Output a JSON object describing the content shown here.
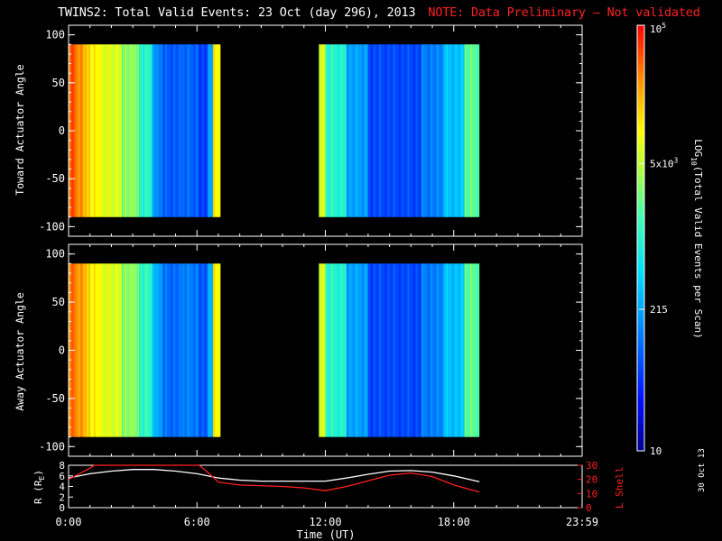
{
  "header": {
    "title": "TWINS2: Total Valid Events: 23 Oct (day 296), 2013",
    "note": "NOTE: Data Preliminary — Not validated"
  },
  "footer": {
    "date_stamp": "30 Oct 13"
  },
  "colors": {
    "note": "#ff2020",
    "r_line": "#ffffff",
    "l_line": "#ff2020",
    "gap": "#000000"
  },
  "chart_data": [
    {
      "type": "heatmap",
      "panel": "top",
      "ylabel": "Toward Actuator Angle",
      "ylim": [
        -110,
        110
      ],
      "yticks": [
        100,
        50,
        0,
        -50,
        -100
      ],
      "data_angle_range": [
        -90,
        90
      ],
      "xlim_hours": [
        0,
        24
      ],
      "colorscale": "log10 counts 10 to 100000",
      "columns": [
        {
          "t_start": 0.0,
          "t_end": 0.3,
          "log": 4.7
        },
        {
          "t_start": 0.3,
          "t_end": 0.6,
          "log": 4.55
        },
        {
          "t_start": 0.6,
          "t_end": 1.0,
          "log": 4.3
        },
        {
          "t_start": 1.0,
          "t_end": 1.5,
          "log": 4.0
        },
        {
          "t_start": 1.5,
          "t_end": 2.5,
          "log": 3.85
        },
        {
          "t_start": 2.5,
          "t_end": 3.3,
          "log": 3.5
        },
        {
          "t_start": 3.3,
          "t_end": 3.9,
          "log": 3.05
        },
        {
          "t_start": 3.9,
          "t_end": 4.4,
          "log": 2.2
        },
        {
          "t_start": 4.4,
          "t_end": 5.3,
          "log": 1.9
        },
        {
          "t_start": 5.3,
          "t_end": 6.1,
          "log": 1.95
        },
        {
          "t_start": 6.1,
          "t_end": 6.5,
          "log": 1.75
        },
        {
          "t_start": 6.5,
          "t_end": 6.75,
          "log": 2.3
        },
        {
          "t_start": 6.75,
          "t_end": 7.1,
          "log": 4.0
        },
        {
          "t_start": 11.7,
          "t_end": 12.0,
          "log": 3.8
        },
        {
          "t_start": 12.0,
          "t_end": 13.0,
          "log": 3.0
        },
        {
          "t_start": 13.0,
          "t_end": 14.0,
          "log": 2.3
        },
        {
          "t_start": 14.0,
          "t_end": 16.5,
          "log": 1.8
        },
        {
          "t_start": 16.5,
          "t_end": 17.5,
          "log": 2.1
        },
        {
          "t_start": 17.5,
          "t_end": 18.5,
          "log": 2.5
        },
        {
          "t_start": 18.5,
          "t_end": 19.2,
          "log": 3.3
        }
      ]
    },
    {
      "type": "heatmap",
      "panel": "bottom",
      "ylabel": "Away Actuator Angle",
      "ylim": [
        -110,
        110
      ],
      "yticks": [
        100,
        50,
        0,
        -50,
        -100
      ],
      "data_angle_range": [
        -90,
        90
      ],
      "xlim_hours": [
        0,
        24
      ],
      "colorscale": "log10 counts 10 to 100000",
      "columns": [
        {
          "t_start": 0.0,
          "t_end": 0.3,
          "log": 4.6
        },
        {
          "t_start": 0.3,
          "t_end": 0.6,
          "log": 4.5
        },
        {
          "t_start": 0.6,
          "t_end": 1.0,
          "log": 4.3
        },
        {
          "t_start": 1.0,
          "t_end": 1.5,
          "log": 4.0
        },
        {
          "t_start": 1.5,
          "t_end": 2.5,
          "log": 3.85
        },
        {
          "t_start": 2.5,
          "t_end": 3.3,
          "log": 3.5
        },
        {
          "t_start": 3.3,
          "t_end": 3.9,
          "log": 3.1
        },
        {
          "t_start": 3.9,
          "t_end": 4.4,
          "log": 2.4
        },
        {
          "t_start": 4.4,
          "t_end": 5.3,
          "log": 2.0
        },
        {
          "t_start": 5.3,
          "t_end": 6.1,
          "log": 2.1
        },
        {
          "t_start": 6.1,
          "t_end": 6.5,
          "log": 1.9
        },
        {
          "t_start": 6.5,
          "t_end": 6.75,
          "log": 2.4
        },
        {
          "t_start": 6.75,
          "t_end": 7.1,
          "log": 4.0
        },
        {
          "t_start": 11.7,
          "t_end": 12.0,
          "log": 3.8
        },
        {
          "t_start": 12.0,
          "t_end": 13.0,
          "log": 3.0
        },
        {
          "t_start": 13.0,
          "t_end": 14.0,
          "log": 2.3
        },
        {
          "t_start": 14.0,
          "t_end": 16.5,
          "log": 1.8
        },
        {
          "t_start": 16.5,
          "t_end": 17.5,
          "log": 2.1
        },
        {
          "t_start": 17.5,
          "t_end": 18.5,
          "log": 2.5
        },
        {
          "t_start": 18.5,
          "t_end": 19.2,
          "log": 3.3
        }
      ]
    },
    {
      "type": "line",
      "panel": "ephemeris",
      "xlabel": "Time (UT)",
      "xticks": [
        "0:00",
        "6:00",
        "12:00",
        "18:00",
        "23:59"
      ],
      "ylabel_left": "R (R",
      "ylabel_left_sub": "E",
      "ylabel_left_tail": ")",
      "ylim_left": [
        0,
        8
      ],
      "yticks_left": [
        8,
        6,
        4,
        2,
        0
      ],
      "ylabel_right": "L Shell",
      "ylim_right": [
        0,
        30
      ],
      "yticks_right": [
        30,
        20,
        10,
        0
      ],
      "series": [
        {
          "axis": "left",
          "x": [
            0,
            1,
            2,
            3,
            4,
            5,
            6,
            7,
            8,
            9,
            10,
            11,
            12,
            13,
            14,
            15,
            16,
            17,
            18,
            19.2
          ],
          "y": [
            5.6,
            6.4,
            6.9,
            7.2,
            7.2,
            6.9,
            6.4,
            5.6,
            5.2,
            5.0,
            5.0,
            5.0,
            5.0,
            5.6,
            6.3,
            6.9,
            7.0,
            6.7,
            6.0,
            4.9
          ]
        },
        {
          "axis": "right",
          "x": [
            0,
            0.5,
            1,
            1.2,
            6.1,
            6.5,
            7,
            8,
            10,
            11,
            12,
            13,
            14,
            15,
            16,
            17,
            18,
            19.2
          ],
          "y": [
            20,
            24,
            28,
            30,
            30,
            25,
            18,
            16,
            15,
            14,
            12,
            15,
            19,
            23,
            24.5,
            22,
            16,
            11
          ]
        }
      ]
    },
    {
      "type": "colorbar",
      "label": "LOG10(Total Valid Events per Scan)",
      "label_main": "LOG",
      "label_sub": "10",
      "label_tail": "(Total Valid Events per Scan)",
      "tick_labels": [
        {
          "text": "10",
          "log": 1.0
        },
        {
          "text": "215",
          "log": 2.33
        },
        {
          "text": "5x10",
          "sup": "3",
          "log": 3.7
        },
        {
          "text": "10",
          "sup": "5",
          "log": 5.0
        }
      ],
      "range_log": [
        1,
        5
      ]
    }
  ]
}
